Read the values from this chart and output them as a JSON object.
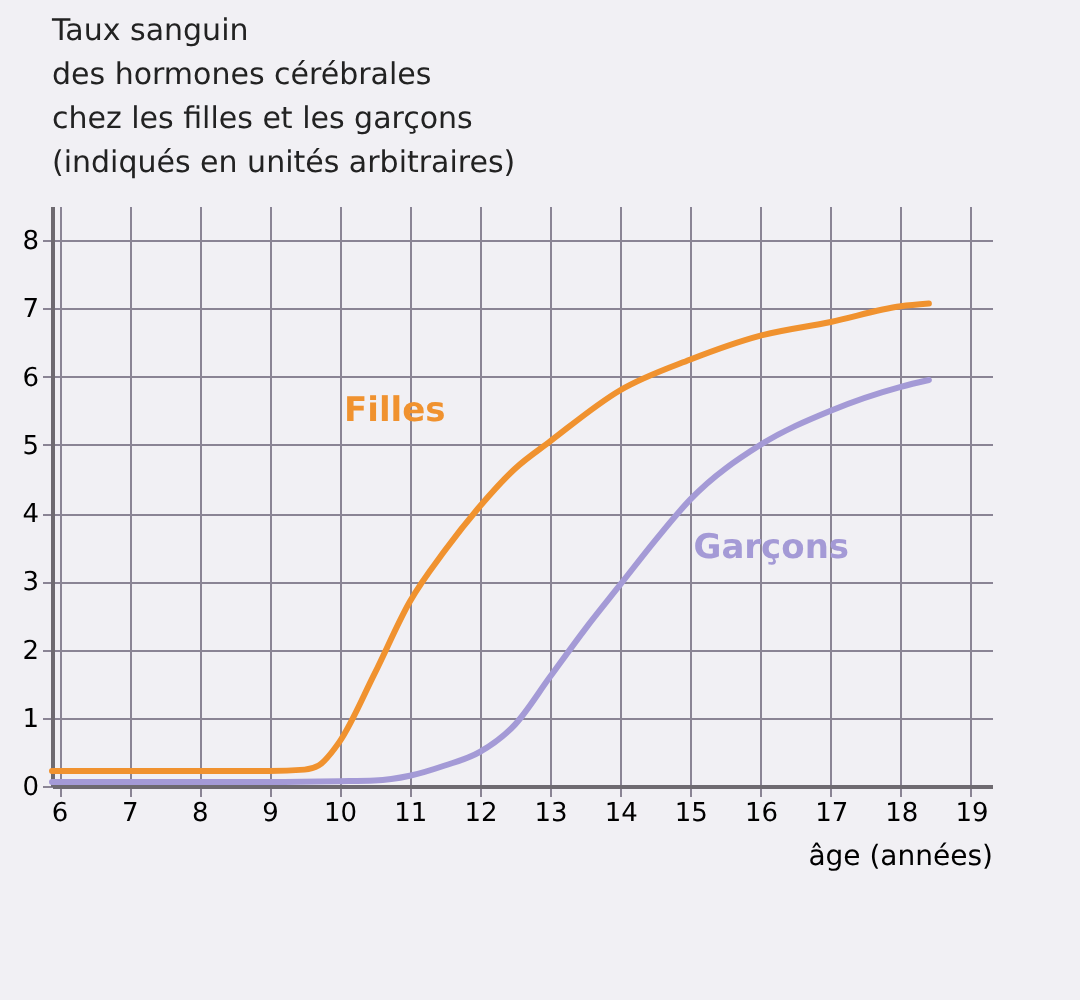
{
  "chart_data": {
    "type": "line",
    "title": [
      "Taux sanguin",
      "des hormones cérébrales",
      "chez les filles et les garçons",
      "(indiqués en unités arbitraires)"
    ],
    "xlabel": "âge (années)",
    "xlim": [
      5.9,
      19.3
    ],
    "xticks": [
      6,
      7,
      8,
      9,
      10,
      11,
      12,
      13,
      14,
      15,
      16,
      17,
      18,
      19
    ],
    "ylim": [
      0,
      8.5
    ],
    "yticks": [
      0,
      1,
      2,
      3,
      4,
      5,
      6,
      7,
      8
    ],
    "grid": true,
    "legend": false,
    "marker": "none",
    "line_style": "solid",
    "series": [
      {
        "name": "Filles",
        "color": "#f0922f",
        "x": [
          5.9,
          7,
          8,
          9,
          9.5,
          9.7,
          10,
          10.5,
          11,
          11.5,
          12,
          12.5,
          13,
          14,
          15,
          16,
          17,
          18,
          18.4
        ],
        "values": [
          0.22,
          0.22,
          0.22,
          0.22,
          0.24,
          0.3,
          0.65,
          1.65,
          2.7,
          3.45,
          4.1,
          4.65,
          5.05,
          5.8,
          6.25,
          6.6,
          6.8,
          7.03,
          7.07
        ]
      },
      {
        "name": "Garçons",
        "color": "#a49ad6",
        "x": [
          5.9,
          7,
          8,
          9,
          10,
          10.5,
          11,
          11.5,
          12,
          12.5,
          13,
          13.5,
          14,
          14.5,
          15,
          16,
          17,
          18,
          18.4
        ],
        "values": [
          0.06,
          0.06,
          0.06,
          0.06,
          0.07,
          0.08,
          0.15,
          0.3,
          0.5,
          0.9,
          1.6,
          2.3,
          2.95,
          3.6,
          4.2,
          5.0,
          5.5,
          5.85,
          5.95
        ]
      }
    ]
  }
}
